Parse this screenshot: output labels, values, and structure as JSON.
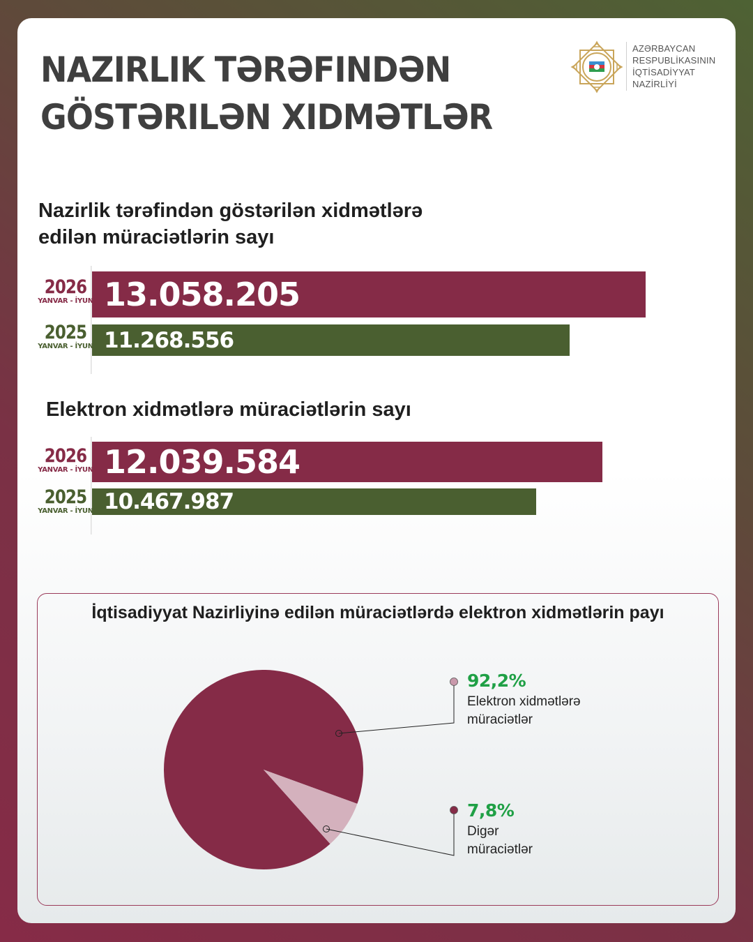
{
  "header": {
    "title_lines": [
      "Nazirlik tərəfindən",
      "göstərilən xidmətlər"
    ],
    "logo_text": [
      "AZƏRBAYCAN",
      "RESPUBLİKASININ",
      "İQTİSADİYYAT",
      "NAZİRLİYİ"
    ]
  },
  "colors": {
    "year_2026": "#852b47",
    "year_2025": "#4a5f30",
    "highlight_pct": "#1fa045"
  },
  "chart_data": [
    {
      "type": "bar",
      "orientation": "horizontal",
      "title_lines": [
        "Nazirlik tərəfindən göstərilən xidmətlərə",
        "edilən müraciətlərin sayı"
      ],
      "categories": [
        {
          "year": "2026",
          "period": "YANVAR - İYUN"
        },
        {
          "year": "2025",
          "period": "YANVAR - İYUN"
        }
      ],
      "values": [
        13058205,
        11268556
      ],
      "value_labels": [
        "13.058.205",
        "11.268.556"
      ]
    },
    {
      "type": "bar",
      "orientation": "horizontal",
      "title_lines": [
        "Elektron xidmətlərə müraciətlərin sayı"
      ],
      "categories": [
        {
          "year": "2026",
          "period": "YANVAR - İYUN"
        },
        {
          "year": "2025",
          "period": "YANVAR - İYUN"
        }
      ],
      "values": [
        12039584,
        10467987
      ],
      "value_labels": [
        "12.039.584",
        "10.467.987"
      ]
    },
    {
      "type": "pie",
      "title": "İqtisadiyyat Nazirliyinə edilən müraciətlərdə elektron xidmətlərin payı",
      "slices": [
        {
          "value": 92.2,
          "label_pct": "92,2%",
          "label_lines": [
            "Elektron xidmətlərə",
            "müraciətlər"
          ],
          "color": "#852b47"
        },
        {
          "value": 7.8,
          "label_pct": "7,8%",
          "label_lines": [
            "Digər",
            "müraciətlər"
          ],
          "color": "#d4b1bd"
        }
      ]
    }
  ]
}
